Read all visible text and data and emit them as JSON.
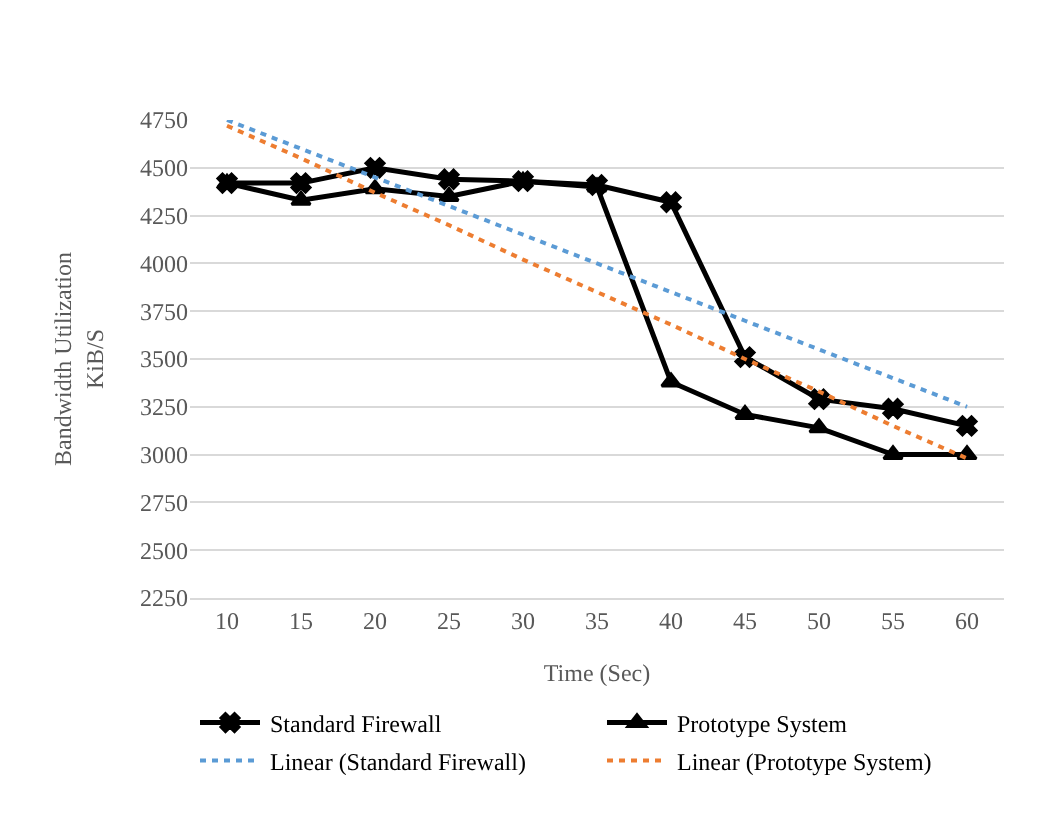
{
  "chart_data": {
    "type": "line",
    "xlabel": "Time (Sec)",
    "ylabel": "Bandwidth Utilization\nKiB/S",
    "x": [
      10,
      15,
      20,
      25,
      30,
      35,
      40,
      45,
      50,
      55,
      60
    ],
    "xlim": [
      7.5,
      62.5
    ],
    "xticks": [
      10,
      15,
      20,
      25,
      30,
      35,
      40,
      45,
      50,
      55,
      60
    ],
    "ylim": [
      2250,
      4750
    ],
    "yticks": [
      2250,
      2500,
      2750,
      3000,
      3250,
      3500,
      3750,
      4000,
      4250,
      4500,
      4750
    ],
    "grid": "y",
    "legend": "bottom",
    "series": [
      {
        "name": "Standard Firewall",
        "color": "#000000",
        "marker": "cross",
        "line_style": "solid",
        "values": [
          4420,
          4420,
          4500,
          4440,
          4430,
          4410,
          4320,
          3510,
          3290,
          3240,
          3150
        ]
      },
      {
        "name": "Prototype System",
        "color": "#000000",
        "marker": "triangle",
        "line_style": "solid",
        "values": [
          4420,
          4330,
          4390,
          4350,
          4430,
          4400,
          3380,
          3210,
          3140,
          3000,
          3000
        ]
      },
      {
        "name": "Linear (Standard Firewall)",
        "color": "#5b9bd5",
        "marker": "none",
        "line_style": "dotted",
        "values": [
          4750,
          4600,
          4450,
          4300,
          4150,
          4000,
          3850,
          3700,
          3550,
          3400,
          3250
        ]
      },
      {
        "name": "Linear (Prototype System)",
        "color": "#ed7d31",
        "marker": "none",
        "line_style": "dotted",
        "values": [
          4720,
          4550,
          4370,
          4200,
          4020,
          3850,
          3680,
          3500,
          3330,
          3150,
          2980
        ]
      }
    ]
  }
}
